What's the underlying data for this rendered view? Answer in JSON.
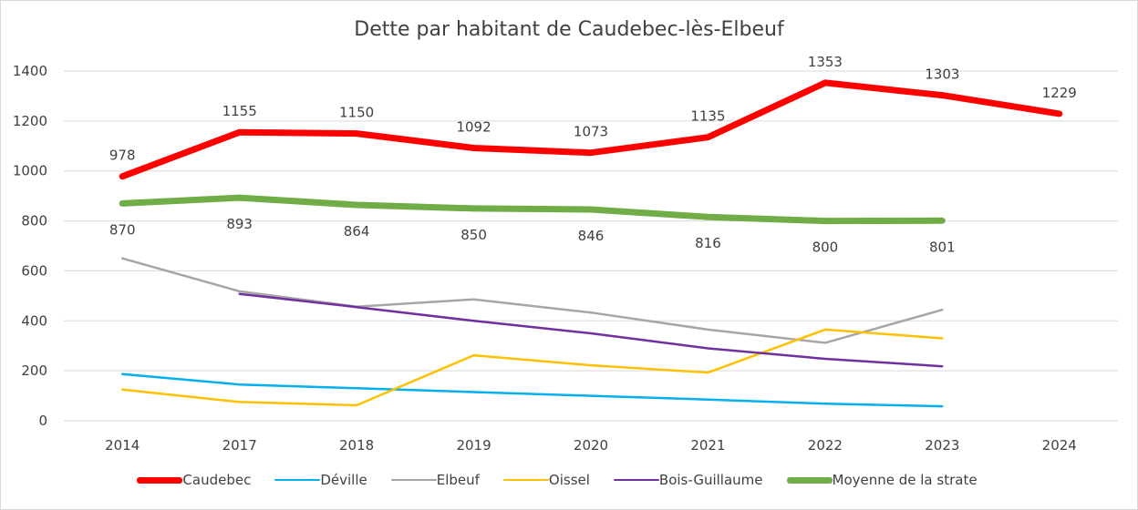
{
  "chart_data": {
    "type": "line",
    "title": "Dette par habitant de Caudebec-lès-Elbeuf",
    "xlabel": "",
    "ylabel": "",
    "categories": [
      "2014",
      "2017",
      "2018",
      "2019",
      "2020",
      "2021",
      "2022",
      "2023",
      "2024"
    ],
    "ylim": [
      0,
      1400
    ],
    "yticks": [
      0,
      200,
      400,
      600,
      800,
      1000,
      1200,
      1400
    ],
    "grid": true,
    "legend_position": "bottom",
    "series": [
      {
        "name": "Caudebec",
        "color": "#ff0000",
        "values": [
          978,
          1155,
          1150,
          1092,
          1073,
          1135,
          1353,
          1303,
          1229
        ],
        "labels": true,
        "label_side": "above"
      },
      {
        "name": "Déville",
        "color": "#00b0f0",
        "values": [
          187,
          145,
          130,
          115,
          100,
          85,
          68,
          58,
          null
        ]
      },
      {
        "name": "Elbeuf",
        "color": "#a6a6a6",
        "values": [
          650,
          518,
          457,
          486,
          433,
          365,
          312,
          444,
          null
        ]
      },
      {
        "name": "Oissel",
        "color": "#ffc000",
        "values": [
          125,
          75,
          62,
          262,
          222,
          193,
          365,
          330,
          null
        ]
      },
      {
        "name": "Bois-Guillaume",
        "color": "#7030a0",
        "values": [
          null,
          508,
          455,
          400,
          350,
          290,
          248,
          218,
          null
        ]
      },
      {
        "name": "Moyenne de la strate",
        "color": "#70ad47",
        "values": [
          870,
          893,
          864,
          850,
          846,
          816,
          800,
          801,
          null
        ],
        "labels": true,
        "label_side": "below"
      }
    ]
  }
}
